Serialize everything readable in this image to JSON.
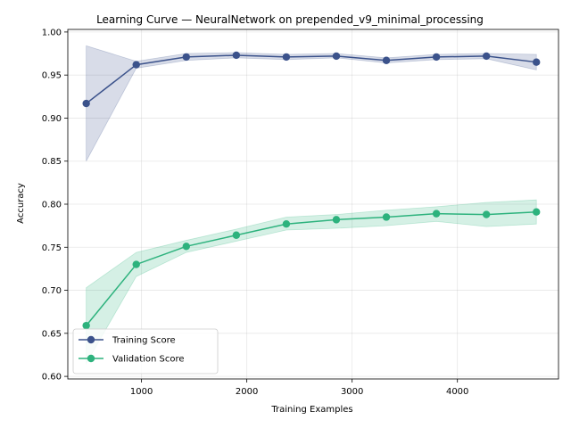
{
  "chart_data": {
    "type": "line",
    "title": "Learning Curve — NeuralNetwork on prepended_v9_minimal_processing",
    "xlabel": "Training Examples",
    "ylabel": "Accuracy",
    "xlim": [
      300,
      4960
    ],
    "ylim": [
      0.597,
      1.003
    ],
    "xticks": [
      1000,
      2000,
      3000,
      4000
    ],
    "yticks": [
      0.6,
      0.65,
      0.7,
      0.75,
      0.8,
      0.85,
      0.9,
      0.95,
      1.0
    ],
    "grid": true,
    "legend_position": "lower-left",
    "x": [
      475,
      950,
      1425,
      1900,
      2375,
      2850,
      3325,
      3800,
      4275,
      4750
    ],
    "series": [
      {
        "name": "Training Score",
        "color": "#3b528b",
        "values": [
          0.917,
          0.962,
          0.971,
          0.973,
          0.971,
          0.972,
          0.967,
          0.971,
          0.972,
          0.965
        ],
        "lower": [
          0.85,
          0.958,
          0.967,
          0.97,
          0.968,
          0.97,
          0.964,
          0.968,
          0.969,
          0.956
        ],
        "upper": [
          0.984,
          0.966,
          0.975,
          0.976,
          0.974,
          0.975,
          0.97,
          0.974,
          0.975,
          0.974
        ]
      },
      {
        "name": "Validation Score",
        "color": "#2db27d",
        "values": [
          0.659,
          0.73,
          0.751,
          0.764,
          0.777,
          0.782,
          0.785,
          0.789,
          0.788,
          0.791
        ],
        "lower": [
          0.615,
          0.716,
          0.744,
          0.757,
          0.77,
          0.772,
          0.775,
          0.78,
          0.774,
          0.777
        ],
        "upper": [
          0.703,
          0.744,
          0.758,
          0.771,
          0.785,
          0.788,
          0.793,
          0.797,
          0.802,
          0.805
        ]
      }
    ]
  }
}
